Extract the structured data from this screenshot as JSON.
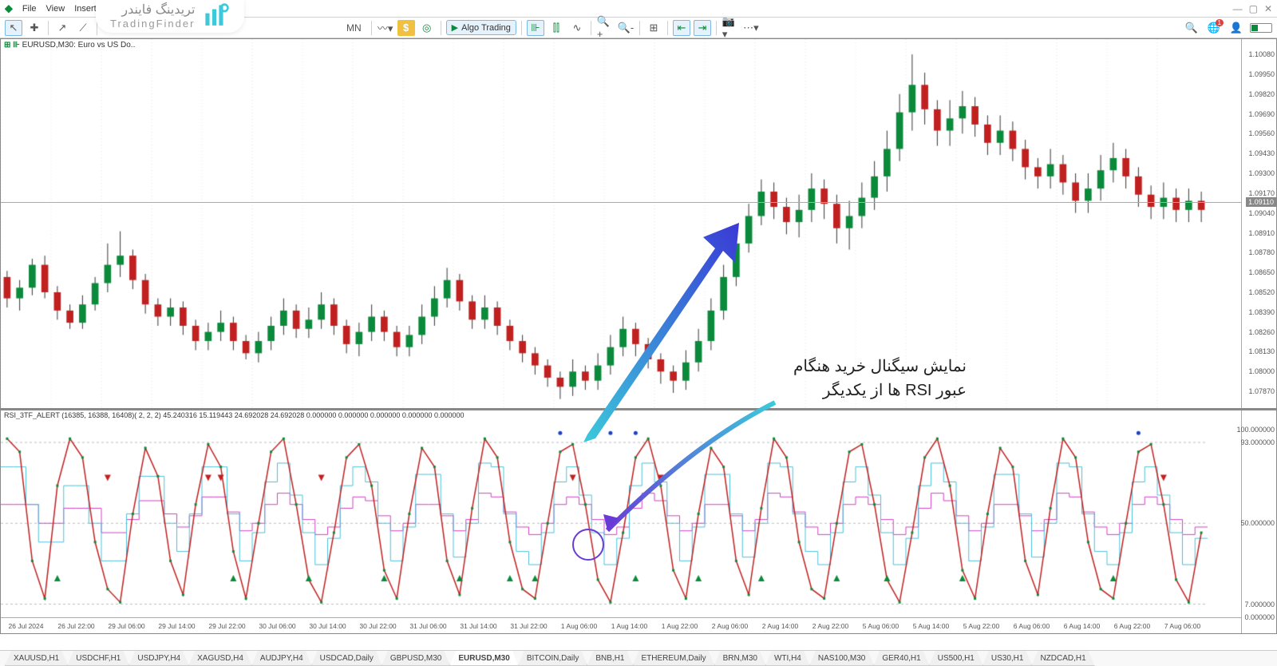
{
  "menu": {
    "items": [
      "File",
      "View",
      "Insert"
    ]
  },
  "brand": {
    "fa": "تریدینگ فایندر",
    "en": "TradingFinder"
  },
  "toolbar": {
    "algo_label": "Algo Trading",
    "mn_label": "MN",
    "notif_count": "1"
  },
  "chart": {
    "symbol_line": "EURUSD,M30:  Euro vs US Do..",
    "price_tag": "1.09110",
    "y_ticks": [
      {
        "v": 1.1008,
        "label": "1.10080"
      },
      {
        "v": 1.0995,
        "label": "1.09950"
      },
      {
        "v": 1.0982,
        "label": "1.09820"
      },
      {
        "v": 1.0969,
        "label": "1.09690"
      },
      {
        "v": 1.0956,
        "label": "1.09560"
      },
      {
        "v": 1.0943,
        "label": "1.09430"
      },
      {
        "v": 1.093,
        "label": "1.09300"
      },
      {
        "v": 1.0917,
        "label": "1.09170"
      },
      {
        "v": 1.0904,
        "label": "1.09040"
      },
      {
        "v": 1.0891,
        "label": "1.08910"
      },
      {
        "v": 1.0878,
        "label": "1.08780"
      },
      {
        "v": 1.0865,
        "label": "1.08650"
      },
      {
        "v": 1.0852,
        "label": "1.08520"
      },
      {
        "v": 1.0839,
        "label": "1.08390"
      },
      {
        "v": 1.0826,
        "label": "1.08260"
      },
      {
        "v": 1.0813,
        "label": "1.08130"
      },
      {
        "v": 1.08,
        "label": "1.08000"
      },
      {
        "v": 1.0787,
        "label": "1.07870"
      }
    ],
    "ymin": 1.0775,
    "ymax": 1.1018,
    "candle_up": "#0a8a3a",
    "candle_dn": "#c02020",
    "candle_wick": "#333333",
    "candles": [
      [
        1.0862,
        1.0848,
        1.0866,
        1.0842
      ],
      [
        1.0848,
        1.0855,
        1.086,
        1.084
      ],
      [
        1.0855,
        1.087,
        1.0874,
        1.085
      ],
      [
        1.087,
        1.0852,
        1.0876,
        1.0848
      ],
      [
        1.0852,
        1.084,
        1.0856,
        1.0834
      ],
      [
        1.084,
        1.0832,
        1.0844,
        1.0828
      ],
      [
        1.0832,
        1.0844,
        1.085,
        1.0828
      ],
      [
        1.0844,
        1.0858,
        1.0862,
        1.084
      ],
      [
        1.0858,
        1.087,
        1.0884,
        1.0852
      ],
      [
        1.087,
        1.0876,
        1.0892,
        1.0862
      ],
      [
        1.0876,
        1.086,
        1.088,
        1.0854
      ],
      [
        1.086,
        1.0844,
        1.0864,
        1.0838
      ],
      [
        1.0844,
        1.0836,
        1.0848,
        1.083
      ],
      [
        1.0836,
        1.0842,
        1.0848,
        1.083
      ],
      [
        1.0842,
        1.083,
        1.0846,
        1.0824
      ],
      [
        1.083,
        1.082,
        1.0834,
        1.0814
      ],
      [
        1.082,
        1.0826,
        1.0832,
        1.0814
      ],
      [
        1.0826,
        1.0832,
        1.084,
        1.082
      ],
      [
        1.0832,
        1.082,
        1.0836,
        1.0814
      ],
      [
        1.082,
        1.0812,
        1.0824,
        1.0808
      ],
      [
        1.0812,
        1.082,
        1.0826,
        1.0806
      ],
      [
        1.082,
        1.083,
        1.0836,
        1.0814
      ],
      [
        1.083,
        1.084,
        1.0848,
        1.0824
      ],
      [
        1.084,
        1.0828,
        1.0844,
        1.0822
      ],
      [
        1.0828,
        1.0834,
        1.0842,
        1.0822
      ],
      [
        1.0834,
        1.0844,
        1.0852,
        1.0828
      ],
      [
        1.0844,
        1.083,
        1.0848,
        1.0824
      ],
      [
        1.083,
        1.0818,
        1.0834,
        1.0812
      ],
      [
        1.0818,
        1.0826,
        1.0832,
        1.081
      ],
      [
        1.0826,
        1.0836,
        1.0844,
        1.082
      ],
      [
        1.0836,
        1.0826,
        1.084,
        1.082
      ],
      [
        1.0826,
        1.0816,
        1.083,
        1.081
      ],
      [
        1.0816,
        1.0824,
        1.083,
        1.081
      ],
      [
        1.0824,
        1.0836,
        1.0844,
        1.0818
      ],
      [
        1.0836,
        1.0848,
        1.0856,
        1.083
      ],
      [
        1.0848,
        1.086,
        1.0868,
        1.0842
      ],
      [
        1.086,
        1.0846,
        1.0864,
        1.084
      ],
      [
        1.0846,
        1.0834,
        1.085,
        1.0828
      ],
      [
        1.0834,
        1.0842,
        1.085,
        1.0828
      ],
      [
        1.0842,
        1.083,
        1.0846,
        1.0824
      ],
      [
        1.083,
        1.082,
        1.0834,
        1.0814
      ],
      [
        1.082,
        1.0812,
        1.0824,
        1.0806
      ],
      [
        1.0812,
        1.0804,
        1.0816,
        1.0798
      ],
      [
        1.0804,
        1.0796,
        1.0808,
        1.079
      ],
      [
        1.0796,
        1.079,
        1.08,
        1.0782
      ],
      [
        1.079,
        1.08,
        1.0808,
        1.0784
      ],
      [
        1.08,
        1.0794,
        1.0804,
        1.0788
      ],
      [
        1.0794,
        1.0804,
        1.0812,
        1.0788
      ],
      [
        1.0804,
        1.0816,
        1.0824,
        1.0798
      ],
      [
        1.0816,
        1.0828,
        1.0836,
        1.081
      ],
      [
        1.0828,
        1.0818,
        1.0832,
        1.081
      ],
      [
        1.0818,
        1.0808,
        1.0822,
        1.0802
      ],
      [
        1.0808,
        1.08,
        1.0812,
        1.0792
      ],
      [
        1.08,
        1.0794,
        1.0804,
        1.0786
      ],
      [
        1.0794,
        1.0806,
        1.0814,
        1.0788
      ],
      [
        1.0806,
        1.082,
        1.0828,
        1.08
      ],
      [
        1.082,
        1.084,
        1.0848,
        1.0814
      ],
      [
        1.084,
        1.0862,
        1.087,
        1.0834
      ],
      [
        1.0862,
        1.0884,
        1.0892,
        1.0856
      ],
      [
        1.0884,
        1.0902,
        1.091,
        1.0878
      ],
      [
        1.0902,
        1.0918,
        1.0926,
        1.0896
      ],
      [
        1.0918,
        1.0908,
        1.0924,
        1.09
      ],
      [
        1.0908,
        1.0898,
        1.0914,
        1.089
      ],
      [
        1.0898,
        1.0906,
        1.0916,
        1.0888
      ],
      [
        1.0906,
        1.092,
        1.093,
        1.0898
      ],
      [
        1.092,
        1.091,
        1.0926,
        1.09
      ],
      [
        1.091,
        1.0894,
        1.0916,
        1.0884
      ],
      [
        1.0894,
        1.0902,
        1.0912,
        1.088
      ],
      [
        1.0902,
        1.0914,
        1.0924,
        1.0894
      ],
      [
        1.0914,
        1.0928,
        1.0938,
        1.0906
      ],
      [
        1.0928,
        1.0946,
        1.0958,
        1.0918
      ],
      [
        1.0946,
        1.097,
        1.0982,
        1.0938
      ],
      [
        1.097,
        1.0988,
        1.1008,
        1.0958
      ],
      [
        1.0988,
        1.0972,
        1.0996,
        1.0962
      ],
      [
        1.0972,
        1.0958,
        1.0978,
        1.0948
      ],
      [
        1.0958,
        1.0966,
        1.0978,
        1.0948
      ],
      [
        1.0966,
        1.0974,
        1.0984,
        1.0956
      ],
      [
        1.0974,
        1.0962,
        1.098,
        1.0954
      ],
      [
        1.0962,
        1.095,
        1.0968,
        1.0942
      ],
      [
        1.095,
        1.0958,
        1.0968,
        1.0942
      ],
      [
        1.0958,
        1.0946,
        1.0964,
        1.0938
      ],
      [
        1.0946,
        1.0934,
        1.0952,
        1.0926
      ],
      [
        1.0934,
        1.0928,
        1.094,
        1.092
      ],
      [
        1.0928,
        1.0936,
        1.0946,
        1.092
      ],
      [
        1.0936,
        1.0924,
        1.0942,
        1.0916
      ],
      [
        1.0924,
        1.0912,
        1.093,
        1.0904
      ],
      [
        1.0912,
        1.092,
        1.093,
        1.0904
      ],
      [
        1.092,
        1.0932,
        1.0942,
        1.0912
      ],
      [
        1.0932,
        1.094,
        1.095,
        1.0924
      ],
      [
        1.094,
        1.0928,
        1.0946,
        1.092
      ],
      [
        1.0928,
        1.0916,
        1.0934,
        1.0908
      ],
      [
        1.0916,
        1.0908,
        1.0922,
        1.09
      ],
      [
        1.0908,
        1.0914,
        1.0924,
        1.09
      ],
      [
        1.0914,
        1.0906,
        1.092,
        1.0898
      ],
      [
        1.0906,
        1.0912,
        1.092,
        1.0898
      ],
      [
        1.0912,
        1.0906,
        1.0918,
        1.0898
      ]
    ]
  },
  "indicator": {
    "title": "RSI_3TF_ALERT  (16385, 16388, 16408)( 2, 2, 2)    45.240316 15.119443 24.692028 24.692028 0.000000 0.000000 0.000000 0.000000 0.000000",
    "ymin": 0,
    "ymax": 110,
    "y_ticks": [
      {
        "v": 100,
        "label": "100.000000"
      },
      {
        "v": 93,
        "label": "93.000000"
      },
      {
        "v": 50,
        "label": "50.000000"
      },
      {
        "v": 7,
        "label": "7.000000"
      },
      {
        "v": 0,
        "label": "0.000000"
      }
    ],
    "line_red": "#c02020",
    "line_cyan": "#4ac0d8",
    "line_magenta": "#d040c0",
    "dot_green": "#0a8a3a",
    "rsi_red": [
      95,
      88,
      30,
      10,
      70,
      95,
      85,
      40,
      15,
      8,
      55,
      90,
      75,
      30,
      12,
      60,
      92,
      80,
      35,
      10,
      50,
      88,
      95,
      60,
      20,
      8,
      45,
      85,
      92,
      70,
      25,
      10,
      55,
      90,
      80,
      30,
      12,
      58,
      95,
      85,
      40,
      15,
      10,
      50,
      88,
      92,
      60,
      20,
      8,
      45,
      85,
      95,
      70,
      25,
      10,
      55,
      90,
      80,
      30,
      12,
      58,
      95,
      85,
      40,
      15,
      10,
      50,
      88,
      92,
      60,
      20,
      8,
      45,
      85,
      95,
      70,
      25,
      10,
      55,
      90,
      80,
      30,
      12,
      58,
      95,
      85,
      40,
      15,
      10,
      50,
      88,
      92,
      60,
      20,
      8,
      45
    ],
    "rsi_cyan": [
      80,
      80,
      60,
      40,
      40,
      70,
      70,
      50,
      30,
      30,
      55,
      75,
      75,
      50,
      35,
      55,
      80,
      80,
      55,
      30,
      45,
      72,
      82,
      65,
      45,
      28,
      42,
      70,
      80,
      72,
      50,
      30,
      48,
      76,
      76,
      55,
      32,
      50,
      82,
      80,
      55,
      35,
      28,
      45,
      72,
      80,
      65,
      45,
      28,
      42,
      70,
      82,
      72,
      50,
      30,
      48,
      76,
      76,
      55,
      32,
      50,
      82,
      80,
      55,
      35,
      28,
      45,
      72,
      80,
      65,
      45,
      28,
      42,
      70,
      82,
      72,
      50,
      30,
      48,
      76,
      76,
      55,
      32,
      50,
      82,
      80,
      55,
      35,
      28,
      45,
      72,
      80,
      65,
      45,
      28,
      42
    ],
    "rsi_mag": [
      60,
      60,
      60,
      50,
      50,
      58,
      58,
      58,
      45,
      45,
      52,
      62,
      62,
      55,
      48,
      54,
      64,
      64,
      56,
      46,
      50,
      60,
      66,
      60,
      52,
      44,
      48,
      58,
      64,
      62,
      54,
      46,
      50,
      60,
      60,
      54,
      46,
      52,
      66,
      64,
      56,
      48,
      44,
      50,
      60,
      64,
      60,
      52,
      44,
      48,
      58,
      66,
      62,
      54,
      46,
      50,
      60,
      60,
      54,
      46,
      52,
      66,
      64,
      56,
      48,
      44,
      50,
      60,
      64,
      60,
      52,
      44,
      48,
      58,
      66,
      62,
      54,
      46,
      50,
      60,
      60,
      54,
      46,
      52,
      66,
      64,
      56,
      48,
      44,
      50,
      60,
      64,
      60,
      52,
      44,
      48
    ],
    "arrows_up": [
      4,
      18,
      24,
      30,
      36,
      40,
      42,
      50,
      55,
      60,
      66,
      70,
      76,
      88
    ],
    "arrows_dn": [
      8,
      16,
      17,
      25,
      45,
      52,
      92
    ],
    "dots_blue": [
      44,
      48,
      50,
      90
    ]
  },
  "xaxis": {
    "labels": [
      "26 Jul 2024",
      "26 Jul 22:00",
      "29 Jul 06:00",
      "29 Jul 14:00",
      "29 Jul 22:00",
      "30 Jul 06:00",
      "30 Jul 14:00",
      "30 Jul 22:00",
      "31 Jul 06:00",
      "31 Jul 14:00",
      "31 Jul 22:00",
      "1 Aug 06:00",
      "1 Aug 14:00",
      "1 Aug 22:00",
      "2 Aug 06:00",
      "2 Aug 14:00",
      "2 Aug 22:00",
      "5 Aug 06:00",
      "5 Aug 14:00",
      "5 Aug 22:00",
      "6 Aug 06:00",
      "6 Aug 14:00",
      "6 Aug 22:00",
      "7 Aug 06:00"
    ]
  },
  "annotation": {
    "line1": "نمایش سیگنال خرید هنگام",
    "line2": "عبور RSI ها از یکدیگر"
  },
  "tabs": {
    "items": [
      "XAUUSD,H1",
      "USDCHF,H1",
      "USDJPY,H4",
      "XAGUSD,H4",
      "AUDJPY,H4",
      "USDCAD,Daily",
      "GBPUSD,M30",
      "EURUSD,M30",
      "BITCOIN,Daily",
      "BNB,H1",
      "ETHEREUM,Daily",
      "BRN,M30",
      "WTI,H4",
      "NAS100,M30",
      "GER40,H1",
      "US500,H1",
      "US30,H1",
      "NZDCAD,H1"
    ],
    "active": 7
  }
}
